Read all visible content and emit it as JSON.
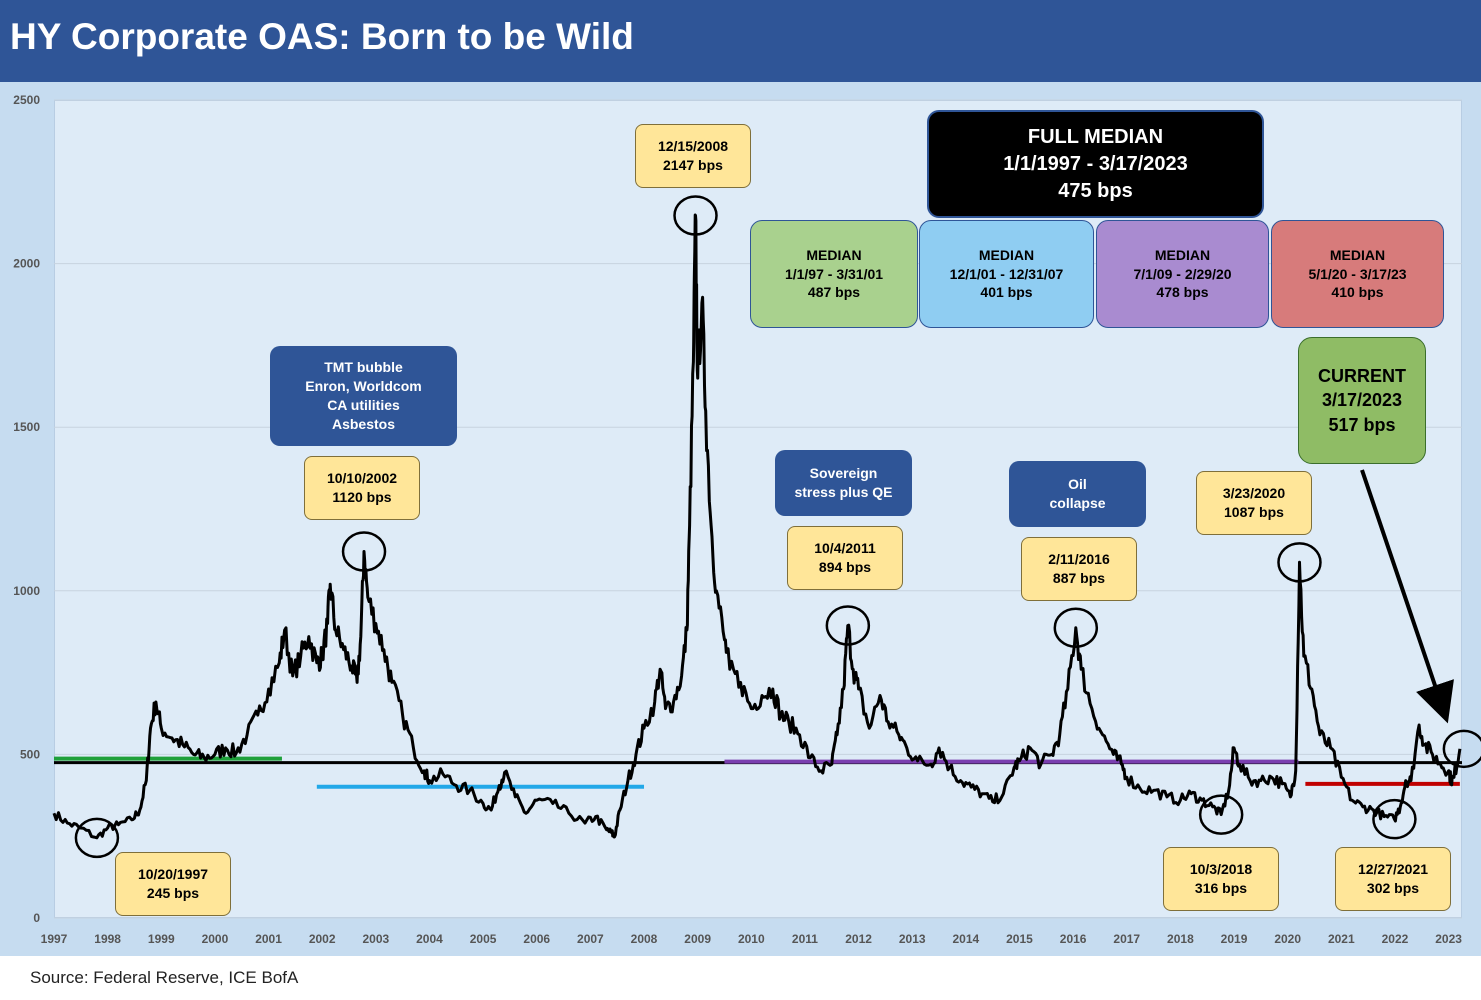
{
  "header": {
    "title": "HY Corporate OAS: Born to be Wild"
  },
  "source": "Source: Federal Reserve, ICE BofA",
  "chart_data": {
    "type": "line",
    "title": "HY Corporate OAS: Born to be Wild",
    "xlabel": "",
    "ylabel": "",
    "xlim": [
      1997.0,
      2023.25
    ],
    "ylim": [
      0,
      2500
    ],
    "grid": true,
    "legend": "none",
    "y_ticks": [
      "0",
      "500",
      "1000",
      "1500",
      "2000",
      "2500"
    ],
    "x_ticks": [
      "1997",
      "1998",
      "1999",
      "2000",
      "2001",
      "2002",
      "2003",
      "2004",
      "2005",
      "2006",
      "2007",
      "2008",
      "2009",
      "2010",
      "2011",
      "2012",
      "2013",
      "2014",
      "2015",
      "2016",
      "2017",
      "2018",
      "2019",
      "2020",
      "2021",
      "2022",
      "2023"
    ],
    "line_color": "#000000",
    "series": [
      {
        "values": [
          [
            1997.0,
            320
          ],
          [
            1997.25,
            290
          ],
          [
            1997.5,
            275
          ],
          [
            1997.8,
            245
          ],
          [
            1998.0,
            275
          ],
          [
            1998.2,
            285
          ],
          [
            1998.45,
            300
          ],
          [
            1998.6,
            330
          ],
          [
            1998.72,
            420
          ],
          [
            1998.8,
            580
          ],
          [
            1998.9,
            660
          ],
          [
            1999.0,
            580
          ],
          [
            1999.2,
            550
          ],
          [
            1999.4,
            530
          ],
          [
            1999.6,
            500
          ],
          [
            1999.8,
            490
          ],
          [
            2000.0,
            500
          ],
          [
            2000.2,
            520
          ],
          [
            2000.4,
            505
          ],
          [
            2000.6,
            560
          ],
          [
            2000.8,
            620
          ],
          [
            2001.0,
            700
          ],
          [
            2001.2,
            780
          ],
          [
            2001.3,
            880
          ],
          [
            2001.45,
            740
          ],
          [
            2001.6,
            800
          ],
          [
            2001.75,
            860
          ],
          [
            2001.9,
            780
          ],
          [
            2002.0,
            800
          ],
          [
            2002.1,
            900
          ],
          [
            2002.15,
            1020
          ],
          [
            2002.25,
            880
          ],
          [
            2002.4,
            820
          ],
          [
            2002.55,
            770
          ],
          [
            2002.65,
            720
          ],
          [
            2002.72,
            860
          ],
          [
            2002.78,
            1120
          ],
          [
            2002.85,
            980
          ],
          [
            2003.0,
            900
          ],
          [
            2003.15,
            820
          ],
          [
            2003.3,
            720
          ],
          [
            2003.5,
            620
          ],
          [
            2003.7,
            520
          ],
          [
            2003.9,
            450
          ],
          [
            2004.0,
            420
          ],
          [
            2004.25,
            440
          ],
          [
            2004.5,
            405
          ],
          [
            2004.75,
            390
          ],
          [
            2005.0,
            350
          ],
          [
            2005.15,
            330
          ],
          [
            2005.3,
            405
          ],
          [
            2005.4,
            445
          ],
          [
            2005.6,
            370
          ],
          [
            2005.8,
            320
          ],
          [
            2006.0,
            360
          ],
          [
            2006.3,
            350
          ],
          [
            2006.6,
            320
          ],
          [
            2006.9,
            290
          ],
          [
            2007.1,
            310
          ],
          [
            2007.3,
            270
          ],
          [
            2007.4,
            260
          ],
          [
            2007.45,
            248
          ],
          [
            2007.55,
            330
          ],
          [
            2007.7,
            420
          ],
          [
            2007.85,
            500
          ],
          [
            2008.0,
            580
          ],
          [
            2008.2,
            660
          ],
          [
            2008.3,
            760
          ],
          [
            2008.4,
            640
          ],
          [
            2008.55,
            660
          ],
          [
            2008.7,
            740
          ],
          [
            2008.8,
            880
          ],
          [
            2008.85,
            1200
          ],
          [
            2008.92,
            1700
          ],
          [
            2008.96,
            2147
          ],
          [
            2009.0,
            1650
          ],
          [
            2009.08,
            1880
          ],
          [
            2009.15,
            1550
          ],
          [
            2009.25,
            1200
          ],
          [
            2009.35,
            1000
          ],
          [
            2009.5,
            850
          ],
          [
            2009.6,
            760
          ],
          [
            2009.8,
            720
          ],
          [
            2010.0,
            640
          ],
          [
            2010.2,
            680
          ],
          [
            2010.4,
            700
          ],
          [
            2010.55,
            620
          ],
          [
            2010.7,
            600
          ],
          [
            2010.9,
            560
          ],
          [
            2011.1,
            490
          ],
          [
            2011.3,
            450
          ],
          [
            2011.5,
            470
          ],
          [
            2011.6,
            560
          ],
          [
            2011.72,
            700
          ],
          [
            2011.8,
            894
          ],
          [
            2011.9,
            760
          ],
          [
            2012.0,
            700
          ],
          [
            2012.2,
            580
          ],
          [
            2012.4,
            680
          ],
          [
            2012.55,
            600
          ],
          [
            2012.75,
            560
          ],
          [
            2012.9,
            520
          ],
          [
            2013.1,
            480
          ],
          [
            2013.35,
            470
          ],
          [
            2013.5,
            520
          ],
          [
            2013.7,
            460
          ],
          [
            2013.9,
            420
          ],
          [
            2014.1,
            400
          ],
          [
            2014.3,
            380
          ],
          [
            2014.5,
            355
          ],
          [
            2014.7,
            380
          ],
          [
            2014.9,
            460
          ],
          [
            2015.0,
            480
          ],
          [
            2015.2,
            520
          ],
          [
            2015.4,
            470
          ],
          [
            2015.6,
            500
          ],
          [
            2015.75,
            560
          ],
          [
            2015.9,
            700
          ],
          [
            2016.05,
            887
          ],
          [
            2016.15,
            760
          ],
          [
            2016.35,
            640
          ],
          [
            2016.55,
            560
          ],
          [
            2016.75,
            500
          ],
          [
            2016.9,
            470
          ],
          [
            2017.0,
            430
          ],
          [
            2017.25,
            395
          ],
          [
            2017.5,
            390
          ],
          [
            2017.75,
            370
          ],
          [
            2018.0,
            360
          ],
          [
            2018.2,
            380
          ],
          [
            2018.4,
            360
          ],
          [
            2018.6,
            340
          ],
          [
            2018.76,
            316
          ],
          [
            2018.9,
            390
          ],
          [
            2019.0,
            520
          ],
          [
            2019.1,
            470
          ],
          [
            2019.3,
            420
          ],
          [
            2019.5,
            420
          ],
          [
            2019.7,
            430
          ],
          [
            2019.9,
            410
          ],
          [
            2020.05,
            370
          ],
          [
            2020.15,
            450
          ],
          [
            2020.22,
            1087
          ],
          [
            2020.3,
            800
          ],
          [
            2020.45,
            700
          ],
          [
            2020.6,
            560
          ],
          [
            2020.8,
            520
          ],
          [
            2021.0,
            430
          ],
          [
            2021.2,
            360
          ],
          [
            2021.4,
            340
          ],
          [
            2021.6,
            330
          ],
          [
            2021.8,
            310
          ],
          [
            2021.99,
            302
          ],
          [
            2022.1,
            340
          ],
          [
            2022.2,
            420
          ],
          [
            2022.3,
            420
          ],
          [
            2022.45,
            590
          ],
          [
            2022.55,
            530
          ],
          [
            2022.7,
            500
          ],
          [
            2022.85,
            470
          ],
          [
            2023.0,
            450
          ],
          [
            2023.05,
            420
          ],
          [
            2023.1,
            430
          ],
          [
            2023.21,
            517
          ]
        ]
      }
    ],
    "reference_lines": [
      {
        "name": "FULL MEDIAN",
        "value": 475,
        "from": 1997.0,
        "to": 2023.25,
        "color": "#000000"
      },
      {
        "name": "MEDIAN 1/1/97 - 3/31/01",
        "value": 487,
        "from": 1997.0,
        "to": 2001.25,
        "color": "#1fa03a"
      },
      {
        "name": "MEDIAN 12/1/01 - 12/31/07",
        "value": 401,
        "from": 2001.9,
        "to": 2008.0,
        "color": "#22a8e8"
      },
      {
        "name": "MEDIAN 7/1/09 - 2/29/20",
        "value": 478,
        "from": 2009.5,
        "to": 2020.2,
        "color": "#7a3fb0"
      },
      {
        "name": "MEDIAN 5/1/20 - 3/17/23",
        "value": 410,
        "from": 2020.33,
        "to": 2023.21,
        "color": "#c00000"
      }
    ],
    "annotations": {
      "callouts": [
        {
          "text": "10/20/1997\n245 bps",
          "x": 1997.8,
          "y": 245
        },
        {
          "text": "10/10/2002\n1120 bps",
          "x": 2002.78,
          "y": 1120
        },
        {
          "text": "12/15/2008\n2147 bps",
          "x": 2008.96,
          "y": 2147
        },
        {
          "text": "10/4/2011\n894 bps",
          "x": 2011.8,
          "y": 894
        },
        {
          "text": "2/11/2016\n887 bps",
          "x": 2016.05,
          "y": 887
        },
        {
          "text": "10/3/2018\n316 bps",
          "x": 2018.76,
          "y": 316
        },
        {
          "text": "3/23/2020\n1087 bps",
          "x": 2020.22,
          "y": 1087
        },
        {
          "text": "12/27/2021\n302 bps",
          "x": 2021.99,
          "y": 302
        }
      ],
      "events": [
        "TMT bubble\nEnron, Worldcom\nCA utilities\nAsbestos",
        "Sovereign\nstress plus QE",
        "Oil\ncollapse"
      ],
      "full_median": "FULL MEDIAN\n1/1/1997 - 3/17/2023\n475 bps",
      "medians": [
        {
          "text": "MEDIAN\n1/1/97 - 3/31/01\n487 bps",
          "color": "#a9d18e"
        },
        {
          "text": "MEDIAN\n12/1/01 - 12/31/07\n401 bps",
          "color": "#8fcdf2"
        },
        {
          "text": "MEDIAN\n7/1/09 - 2/29/20\n478 bps",
          "color": "#a98bd0"
        },
        {
          "text": "MEDIAN\n5/1/20 - 3/17/23\n410 bps",
          "color": "#d77b7b"
        }
      ],
      "current": "CURRENT\n3/17/2023\n517 bps"
    }
  }
}
